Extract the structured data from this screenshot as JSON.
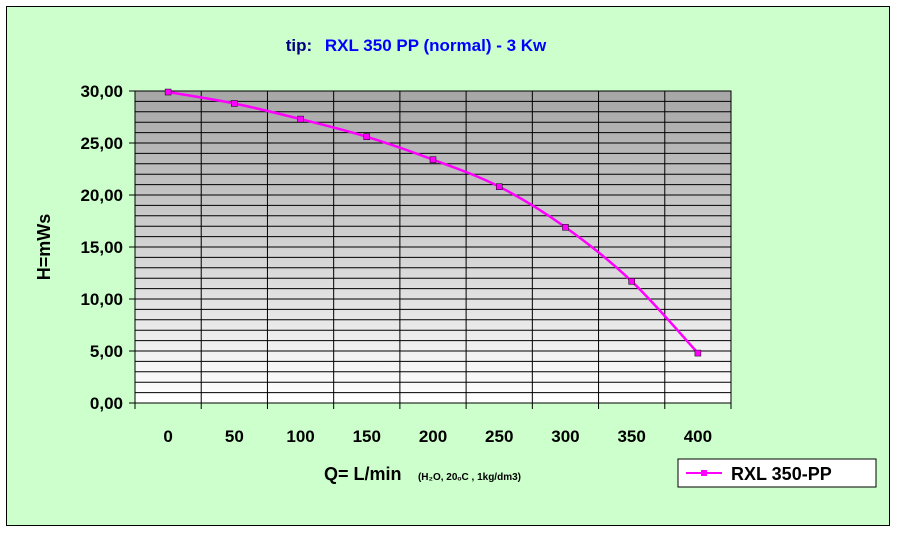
{
  "chart_data": {
    "type": "line",
    "title_prefix": "tip:",
    "title_main": "RXL 350 PP (normal)  - 3 Kw",
    "xlabel": "Q= L/min",
    "xlabel_note": "(H₂O, 20ₒC , 1kg/dm3)",
    "ylabel": "H=mWs",
    "categories": [
      "0",
      "50",
      "100",
      "150",
      "200",
      "250",
      "300",
      "350",
      "400"
    ],
    "y_ticks": [
      "0,00",
      "5,00",
      "10,00",
      "15,00",
      "20,00",
      "25,00",
      "30,00"
    ],
    "ylim": [
      0,
      30
    ],
    "y_minor_step": 1,
    "grid": true,
    "legend_position": "bottom-right",
    "series": [
      {
        "name": "RXL 350-PP",
        "color": "#ff00ff",
        "x": [
          0,
          50,
          100,
          150,
          200,
          250,
          300,
          350,
          400
        ],
        "values": [
          29.9,
          28.8,
          27.3,
          25.6,
          23.4,
          20.8,
          16.9,
          11.7,
          4.8
        ]
      }
    ],
    "colors": {
      "background": "#ccffcc",
      "plot_top": "#a6a6a6",
      "plot_bottom": "#ffffff",
      "title_prefix": "#000080",
      "title_main": "#0000ff"
    }
  }
}
